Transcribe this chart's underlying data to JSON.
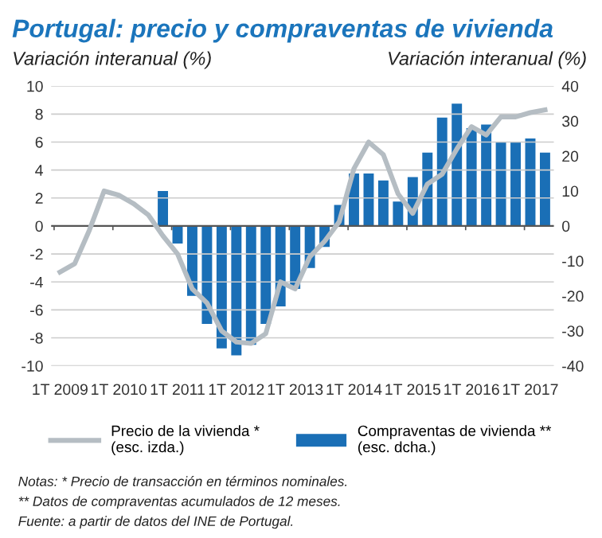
{
  "chart_data": {
    "type": "bar",
    "title": "Portugal: precio y compraventas de vivienda",
    "ylabel": "Variación interanual (%)",
    "y2label": "Variación interanual (%)",
    "categories": [
      "1T 2009",
      null,
      null,
      null,
      "1T 2010",
      null,
      null,
      null,
      "1T 2011",
      null,
      null,
      null,
      "1T 2012",
      null,
      null,
      null,
      "1T 2013",
      null,
      null,
      null,
      "1T 2014",
      null,
      null,
      null,
      "1T 2015",
      null,
      null,
      null,
      "1T 2016",
      null,
      null,
      null,
      "1T 2017",
      null
    ],
    "series": [
      {
        "name": "Precio de la vivienda *\n(esc. izda.)",
        "type": "line",
        "color": "#b5bdc3",
        "values": [
          -3.3,
          -2.7,
          -0.3,
          2.5,
          2.2,
          1.6,
          0.8,
          -0.7,
          -2.0,
          -4.5,
          -5.5,
          -7.5,
          -8.3,
          -8.4,
          -7.7,
          -4.0,
          -4.5,
          -2.2,
          -1.1,
          0.3,
          4.1,
          6.0,
          5.1,
          2.3,
          0.9,
          3.0,
          3.7,
          5.5,
          7.1,
          6.5,
          7.8,
          7.8,
          8.1,
          8.3
        ]
      },
      {
        "name": "Compraventas de vivienda **\n(esc. dcha.)",
        "axis": "y2",
        "color": "#1a6fb6",
        "values": [
          null,
          null,
          null,
          null,
          null,
          null,
          null,
          10,
          -5,
          -20,
          -28,
          -35,
          -37,
          -34,
          -28,
          -23,
          -18,
          -12,
          -6,
          6,
          15,
          15,
          13,
          7,
          14,
          21,
          31,
          35,
          28,
          29,
          24,
          24,
          25,
          21
        ]
      }
    ],
    "ylim": [
      -10,
      10
    ],
    "yticks": [
      -10,
      -8,
      -6,
      -4,
      -2,
      0,
      2,
      4,
      6,
      8,
      10
    ],
    "y2lim": [
      -40,
      40
    ],
    "y2ticks": [
      -40,
      -30,
      -20,
      -10,
      0,
      10,
      20,
      30,
      40
    ],
    "grid": "y",
    "legend": "bottom",
    "annotations": [
      "Notas: * Precio de transacción en términos nominales.",
      "** Datos de compraventas acumulados de 12 meses.",
      "Fuente: a partir de datos del INE de Portugal."
    ]
  }
}
